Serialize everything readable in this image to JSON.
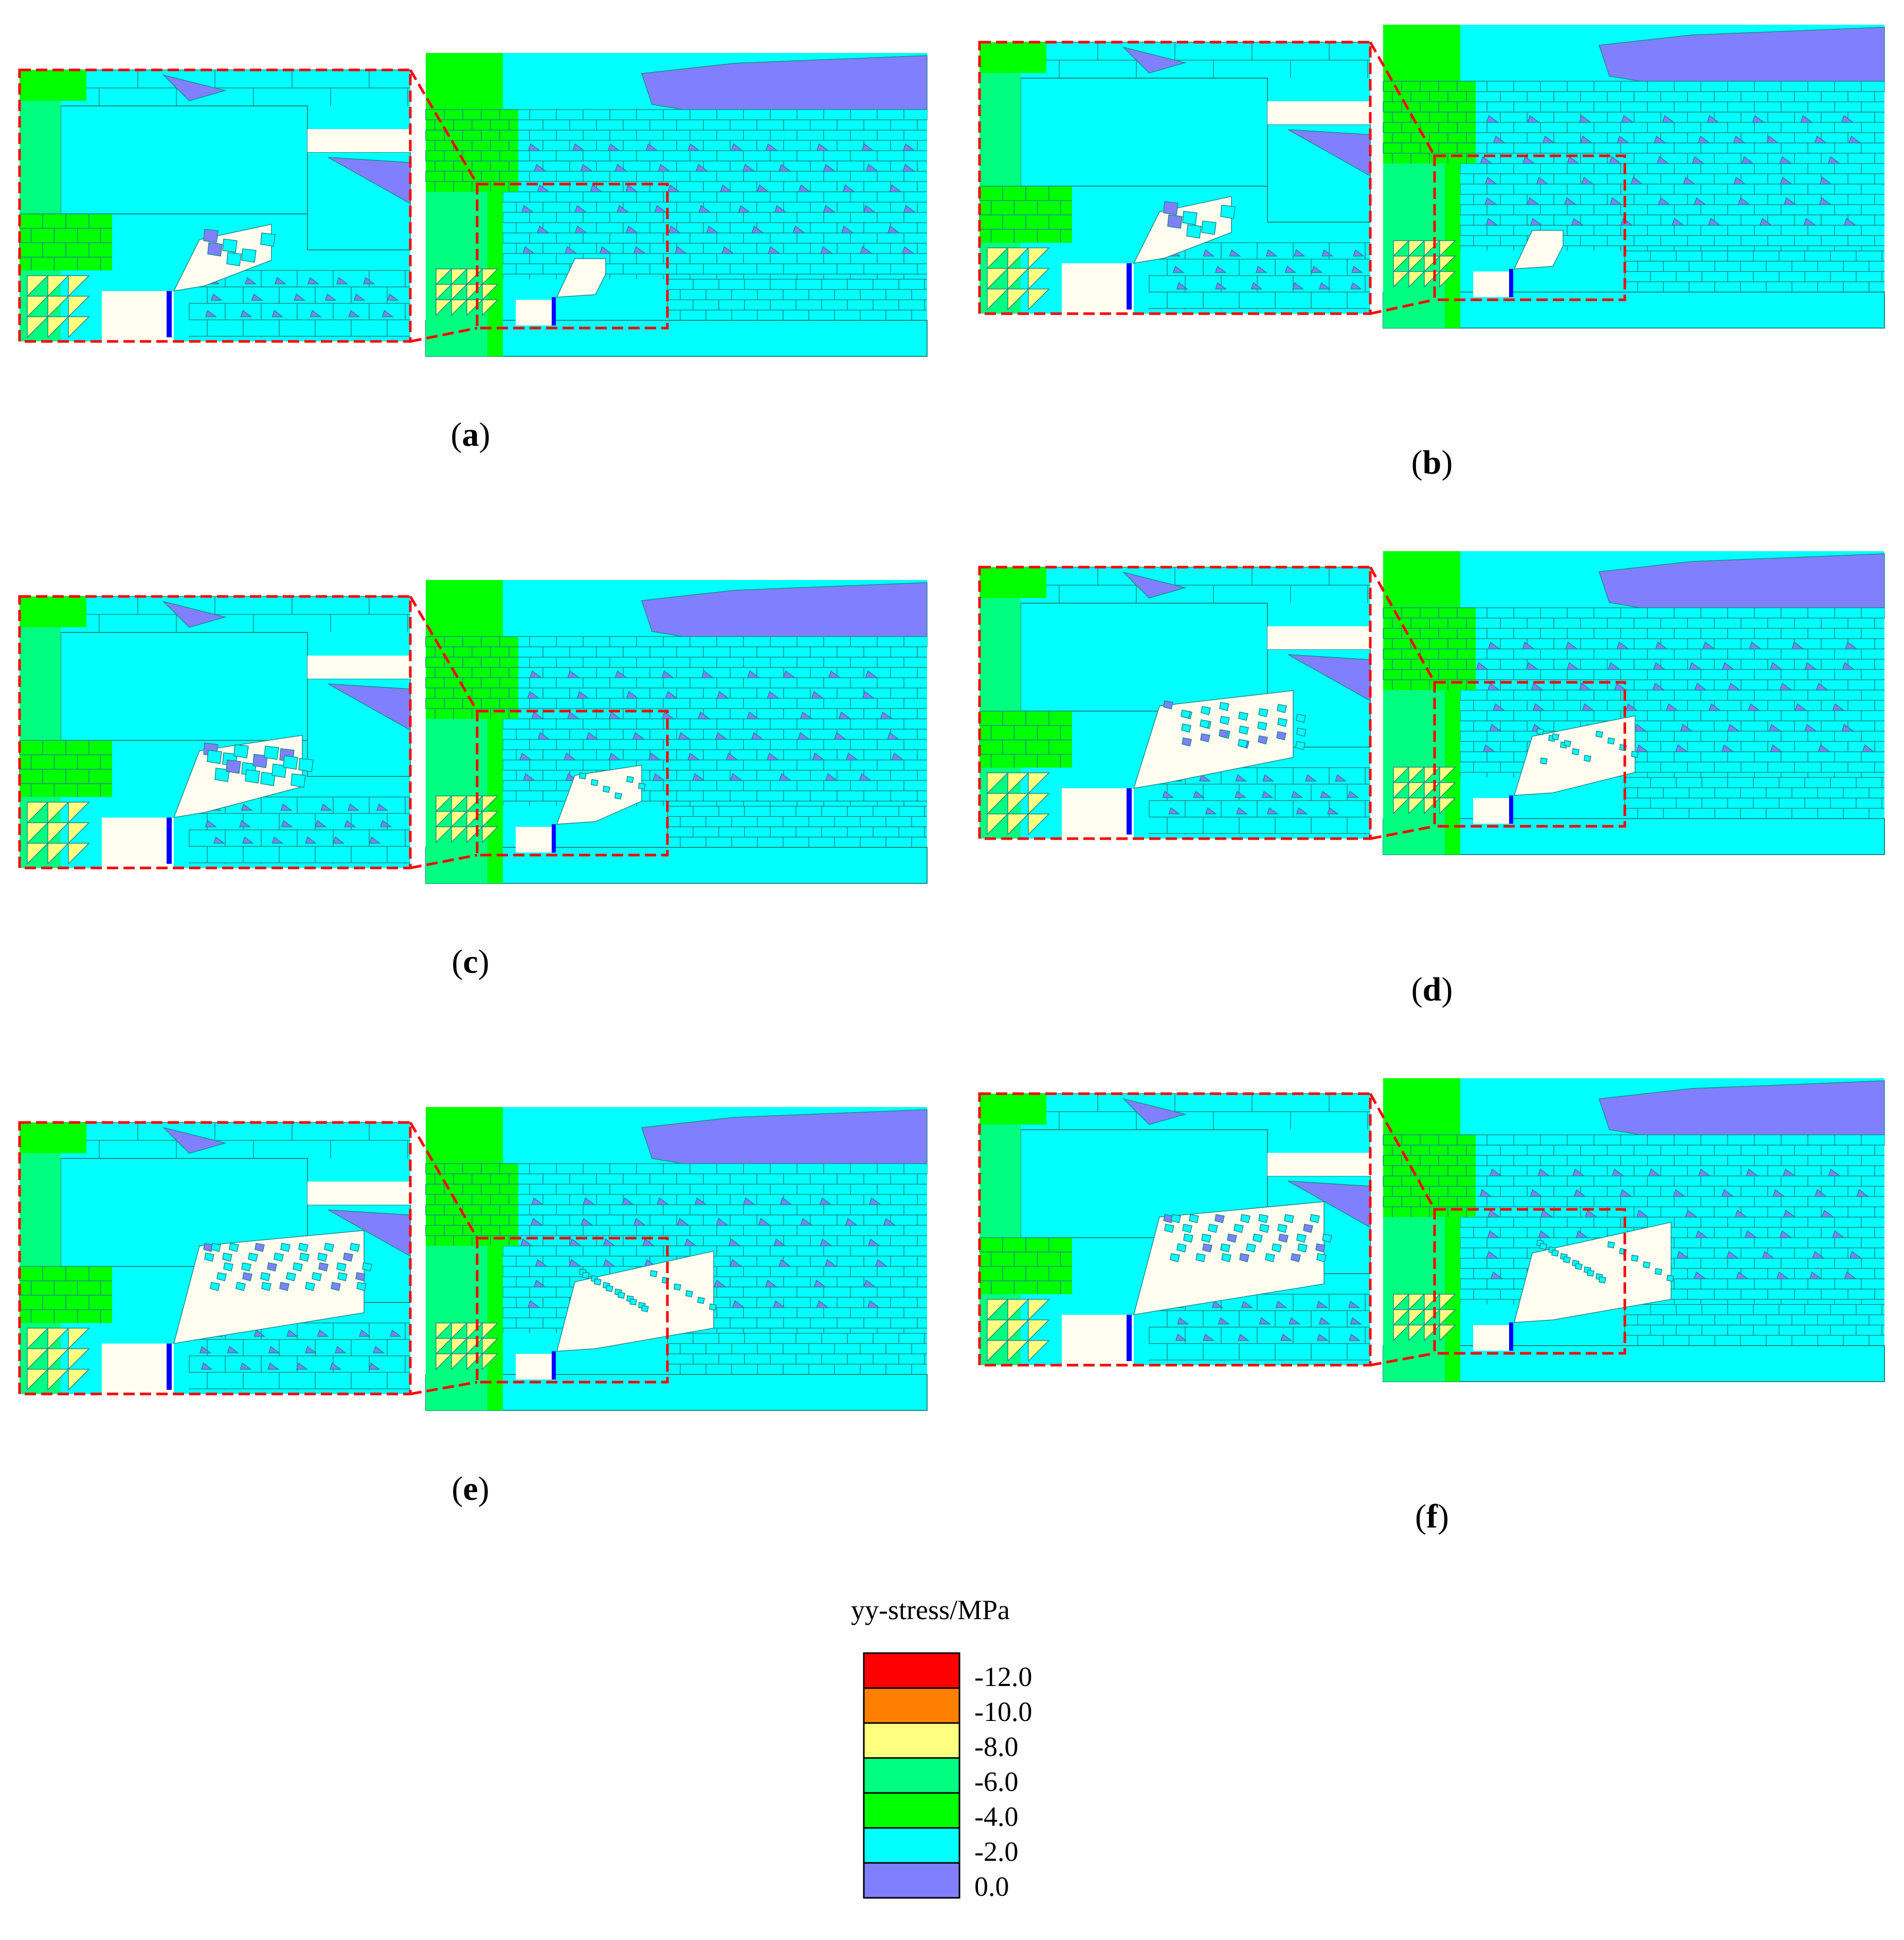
{
  "palette": {
    "c_min12": "#ff0000",
    "c_min10": "#ff8000",
    "c_min8": "#ffff80",
    "c_min6": "#00ff80",
    "c_min4": "#00ff00",
    "c_min2": "#00ffff",
    "c_zero": "#8080ff",
    "void": "#fffdf0",
    "joint": "#1a8a8a",
    "zoom_frame": "#ff0000",
    "support": "#0000ff"
  },
  "panels": [
    {
      "id": "a",
      "label": "a",
      "caving": "none"
    },
    {
      "id": "b",
      "label": "b",
      "caving": "none"
    },
    {
      "id": "c",
      "label": "c",
      "caving": "small"
    },
    {
      "id": "d",
      "label": "d",
      "caving": "medium"
    },
    {
      "id": "e",
      "label": "e",
      "caving": "large"
    },
    {
      "id": "f",
      "label": "f",
      "caving": "large"
    }
  ],
  "legend": {
    "title": "yy-stress/MPa",
    "entries": [
      {
        "label": "-12.0",
        "color": "#ff0000"
      },
      {
        "label": "-10.0",
        "color": "#ff8000"
      },
      {
        "label": "-8.0",
        "color": "#ffff80"
      },
      {
        "label": "-6.0",
        "color": "#00ff80"
      },
      {
        "label": "-4.0",
        "color": "#00ff00"
      },
      {
        "label": "-2.0",
        "color": "#00ffff"
      },
      {
        "label": "0.0",
        "color": "#8080ff"
      }
    ]
  }
}
